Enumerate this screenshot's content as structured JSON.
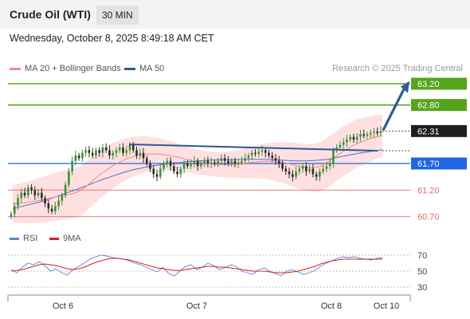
{
  "header": {
    "title": "Crude Oil (WTI)",
    "timeframe": "30 MIN",
    "datetime": "Wednesday, October 8, 2025 8:49:18 AM CET"
  },
  "legend": {
    "ma20_label": "MA 20 + Bollinger Bands",
    "ma50_label": "MA 50",
    "source": "Research © 2025 Trading Central"
  },
  "rsi_legend": {
    "rsi_label": "RSI",
    "ma_label": "9MA"
  },
  "colors": {
    "up": "#3e8e34",
    "down": "#2a2a2a",
    "ma20": "#f08a86",
    "ma50": "#4c6fc0",
    "band": "#ffd6d6",
    "target": "#55a51c",
    "pivot": "#1f66e5",
    "support": "#e06868",
    "trendline": "#2e5897",
    "rsi": "#5b82d6",
    "rsi_ma": "#d42020"
  },
  "chart_data": {
    "type": "candlestick",
    "ylim": [
      60.5,
      63.35
    ],
    "x_tick_labels": [
      "Oct 6",
      "Oct 7",
      "Oct 8",
      "Oct 10"
    ],
    "levels": [
      {
        "value": 63.2,
        "label": "63.20",
        "role": "target"
      },
      {
        "value": 62.8,
        "label": "62.80",
        "role": "target"
      },
      {
        "value": 62.31,
        "label": "62.31",
        "role": "last"
      },
      {
        "value": 61.7,
        "label": "61.70",
        "role": "pivot"
      },
      {
        "value": 61.2,
        "label": "61.20",
        "role": "support"
      },
      {
        "value": 60.7,
        "label": "60.70",
        "role": "support"
      }
    ],
    "candles_close": [
      60.75,
      60.9,
      61.05,
      61.15,
      61.1,
      61.25,
      61.2,
      61.1,
      61.15,
      61.05,
      60.95,
      60.85,
      60.8,
      60.9,
      61.0,
      61.1,
      61.3,
      61.55,
      61.75,
      61.85,
      61.8,
      61.9,
      61.95,
      61.9,
      61.85,
      61.95,
      61.9,
      62.0,
      61.95,
      61.85,
      61.9,
      61.95,
      62.0,
      61.9,
      61.95,
      62.05,
      61.95,
      61.85,
      61.9,
      61.8,
      61.7,
      61.6,
      61.5,
      61.45,
      61.6,
      61.7,
      61.75,
      61.65,
      61.55,
      61.5,
      61.6,
      61.7,
      61.65,
      61.7,
      61.75,
      61.65,
      61.7,
      61.75,
      61.7,
      61.72,
      61.7,
      61.75,
      61.8,
      61.75,
      61.7,
      61.75,
      61.7,
      61.72,
      61.75,
      61.8,
      61.85,
      61.9,
      61.88,
      61.92,
      61.95,
      61.9,
      61.85,
      61.8,
      61.75,
      61.7,
      61.6,
      61.55,
      61.5,
      61.45,
      61.55,
      61.6,
      61.65,
      61.55,
      61.6,
      61.5,
      61.45,
      61.55,
      61.6,
      61.65,
      61.7,
      61.95,
      62.0,
      62.05,
      62.1,
      62.15,
      62.2,
      62.15,
      62.2,
      62.25,
      62.22,
      62.25,
      62.28,
      62.3,
      62.27,
      62.31
    ],
    "ma20": [
      60.95,
      60.95,
      60.96,
      60.98,
      61.0,
      61.02,
      61.05,
      61.08,
      61.1,
      61.12,
      61.15,
      61.2,
      61.3,
      61.4,
      61.5,
      61.58,
      61.66,
      61.72,
      61.78,
      61.82,
      61.85,
      61.87,
      61.88,
      61.88,
      61.87,
      61.85,
      61.83,
      61.8,
      61.77,
      61.74,
      61.72,
      61.7,
      61.69,
      61.68,
      61.68,
      61.68,
      61.69,
      61.7,
      61.72,
      61.73,
      61.74,
      61.74,
      61.73,
      61.72,
      61.7,
      61.67,
      61.64,
      61.62,
      61.62,
      61.64,
      61.7,
      61.78,
      61.87,
      61.95,
      62.02,
      62.08,
      62.12,
      62.16,
      62.2,
      62.22
    ],
    "ma50": [
      60.85,
      60.9,
      60.95,
      61.0,
      61.08,
      61.15,
      61.22,
      61.3,
      61.38,
      61.45,
      61.52,
      61.58,
      61.62,
      61.66,
      61.69,
      61.71,
      61.73,
      61.75,
      61.76,
      61.77,
      61.77,
      61.78,
      61.78,
      61.78,
      61.77,
      61.76,
      61.75,
      61.75,
      61.76,
      61.78,
      61.82,
      61.86,
      61.9,
      61.93,
      61.96
    ],
    "trendline": {
      "start": 62.06,
      "end": 61.94
    },
    "rsi": {
      "ylim": [
        25,
        75
      ],
      "ticks": [
        {
          "v": 70,
          "label": "70"
        },
        {
          "v": 50,
          "label": "50"
        },
        {
          "v": 30,
          "label": "30"
        }
      ],
      "rsi": [
        52,
        48,
        55,
        60,
        58,
        62,
        57,
        50,
        53,
        48,
        45,
        52,
        56,
        60,
        65,
        68,
        70,
        69,
        67,
        66,
        65,
        63,
        60,
        58,
        55,
        52,
        49,
        55,
        47,
        44,
        50,
        56,
        58,
        52,
        55,
        60,
        57,
        52,
        54,
        58,
        56,
        50,
        48,
        46,
        52,
        54,
        50,
        47,
        44,
        50,
        52,
        49,
        46,
        48,
        51,
        56,
        60,
        63,
        66,
        68,
        67,
        68,
        66,
        65,
        64,
        66,
        67
      ],
      "ma": [
        50,
        51,
        52,
        54,
        56,
        58,
        59,
        58,
        57,
        55,
        53,
        52,
        53,
        55,
        58,
        61,
        63,
        65,
        66,
        66,
        65,
        64,
        62,
        60,
        58,
        56,
        54,
        53,
        52,
        51,
        51,
        52,
        53,
        54,
        55,
        56,
        56,
        55,
        55,
        54,
        53,
        52,
        51,
        50,
        50,
        50,
        49,
        48,
        48,
        48,
        49,
        50,
        52,
        54,
        56,
        59,
        61,
        63,
        64,
        65,
        65,
        65,
        65,
        65,
        65,
        65,
        65
      ]
    }
  }
}
